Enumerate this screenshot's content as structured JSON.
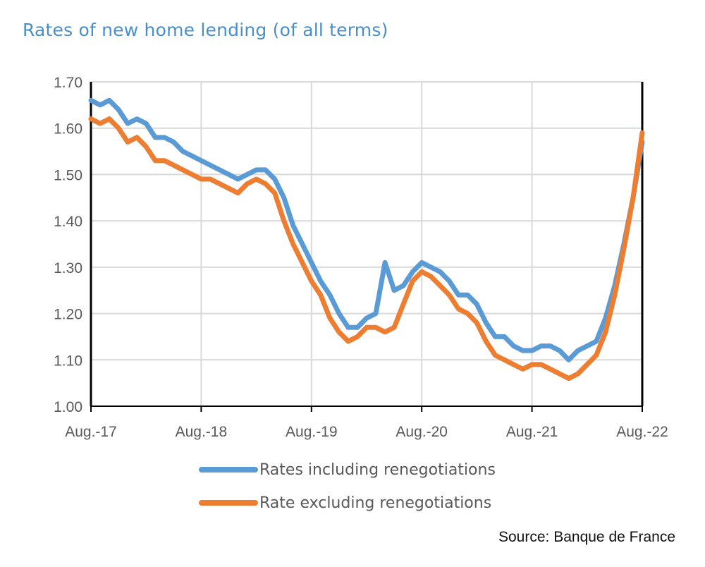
{
  "chart_data": {
    "type": "line",
    "title": "Rates of new home lending (of all terms)",
    "source": "Source: Banque de France",
    "x_tick_labels": [
      "Aug.-17",
      "Aug.-18",
      "Aug.-19",
      "Aug.-20",
      "Aug.-21",
      "Aug.-22"
    ],
    "x_range": [
      "2017-08",
      "2022-08"
    ],
    "x_frequency": "monthly",
    "y_tick_labels": [
      "1.00",
      "1.10",
      "1.20",
      "1.30",
      "1.40",
      "1.50",
      "1.60",
      "1.70"
    ],
    "ylim": [
      1.0,
      1.7
    ],
    "grid": true,
    "legend_position": "bottom",
    "series": [
      {
        "name": "Rates including renegotiations",
        "color": "#5b9bd5",
        "values": [
          1.66,
          1.65,
          1.66,
          1.64,
          1.61,
          1.62,
          1.61,
          1.58,
          1.58,
          1.57,
          1.55,
          1.54,
          1.53,
          1.52,
          1.51,
          1.5,
          1.49,
          1.5,
          1.51,
          1.51,
          1.49,
          1.45,
          1.39,
          1.35,
          1.31,
          1.27,
          1.24,
          1.2,
          1.17,
          1.17,
          1.19,
          1.2,
          1.31,
          1.25,
          1.26,
          1.29,
          1.31,
          1.3,
          1.29,
          1.27,
          1.24,
          1.24,
          1.22,
          1.18,
          1.15,
          1.15,
          1.13,
          1.12,
          1.12,
          1.13,
          1.13,
          1.12,
          1.1,
          1.12,
          1.13,
          1.14,
          1.19,
          1.26,
          1.35,
          1.45,
          1.57
        ]
      },
      {
        "name": "Rate excluding renegotiations",
        "color": "#ed7d31",
        "values": [
          1.62,
          1.61,
          1.62,
          1.6,
          1.57,
          1.58,
          1.56,
          1.53,
          1.53,
          1.52,
          1.51,
          1.5,
          1.49,
          1.49,
          1.48,
          1.47,
          1.46,
          1.48,
          1.49,
          1.48,
          1.46,
          1.4,
          1.35,
          1.31,
          1.27,
          1.24,
          1.19,
          1.16,
          1.14,
          1.15,
          1.17,
          1.17,
          1.16,
          1.17,
          1.22,
          1.27,
          1.29,
          1.28,
          1.26,
          1.24,
          1.21,
          1.2,
          1.18,
          1.14,
          1.11,
          1.1,
          1.09,
          1.08,
          1.09,
          1.09,
          1.08,
          1.07,
          1.06,
          1.07,
          1.09,
          1.11,
          1.16,
          1.24,
          1.34,
          1.45,
          1.59
        ]
      }
    ]
  }
}
